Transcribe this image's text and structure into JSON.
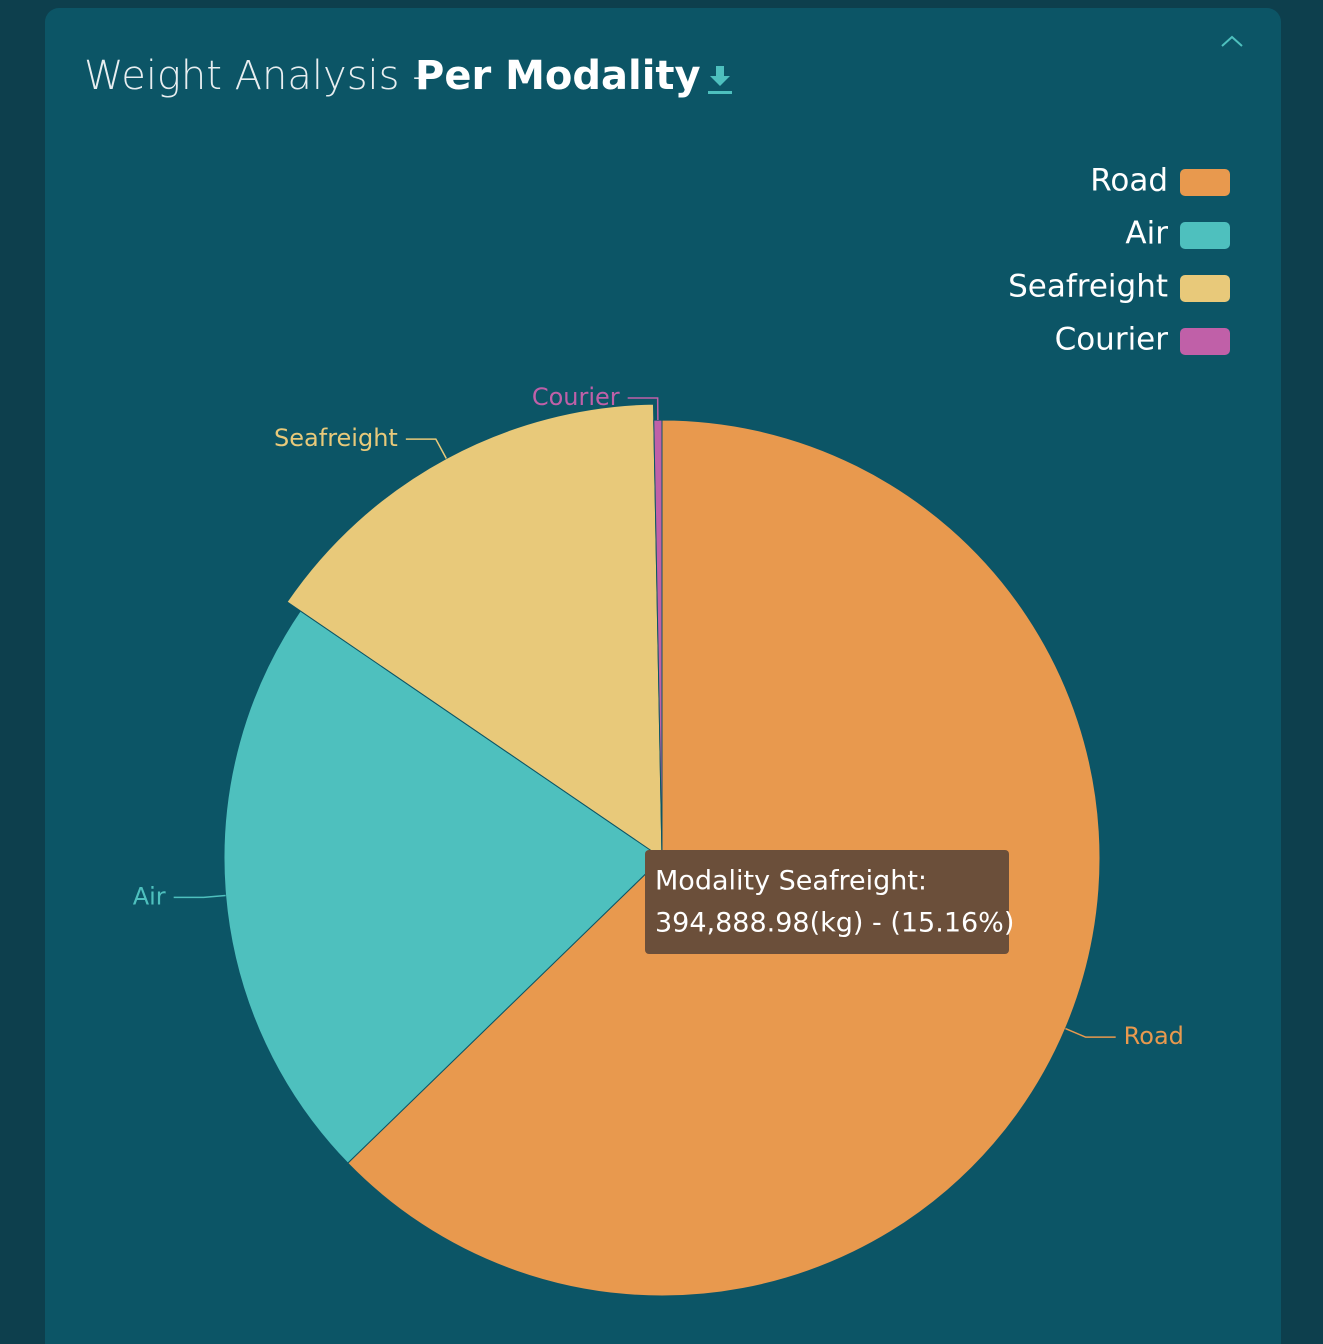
{
  "chart_data": {
    "type": "pie",
    "title": "Weight Analysis -",
    "title_emphasis": "Per Modality",
    "categories": [
      "Road",
      "Air",
      "Seafreight",
      "Courier"
    ],
    "values": [
      1634000,
      568000,
      394888.98,
      7800
    ],
    "colors": [
      "#e8994e",
      "#4ec0be",
      "#e8c97a",
      "#c060a8"
    ],
    "legend": "top-right",
    "tooltip": {
      "category": 2,
      "lines": [
        "Modality Seafreight:",
        "394,888.98(kg) - (15.16%)"
      ]
    }
  }
}
